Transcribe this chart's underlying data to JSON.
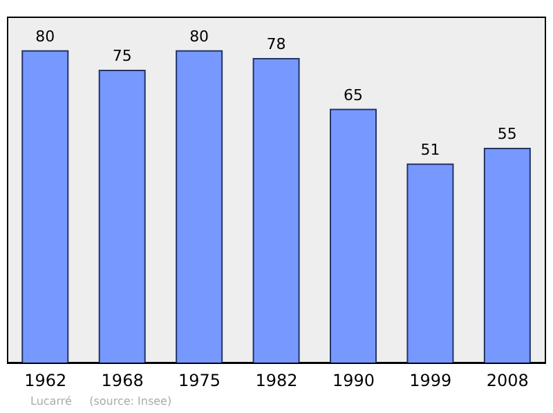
{
  "chart_data": {
    "type": "bar",
    "categories": [
      "1962",
      "1968",
      "1975",
      "1982",
      "1990",
      "1999",
      "2008"
    ],
    "values": [
      80,
      75,
      80,
      78,
      65,
      51,
      55
    ],
    "color": "#7799ff",
    "data_labels": true,
    "annotations": [
      "Lucarré     (source: Insee)"
    ]
  }
}
